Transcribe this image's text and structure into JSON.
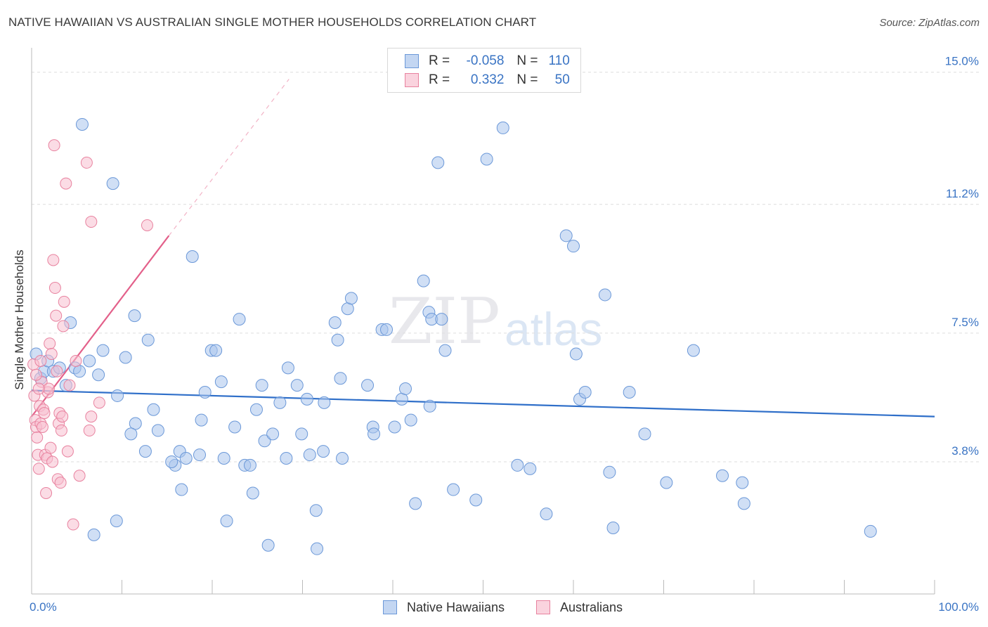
{
  "header": {
    "title": "NATIVE HAWAIIAN VS AUSTRALIAN SINGLE MOTHER HOUSEHOLDS CORRELATION CHART",
    "source": "Source: ZipAtlas.com"
  },
  "watermark": {
    "zip": "ZIP",
    "atlas": "atlas"
  },
  "legend": {
    "rows": [
      {
        "r_label": "R =",
        "r_value": "-0.058",
        "n_label": "N =",
        "n_value": "110",
        "color": "#a9c4ec",
        "border": "#6b98d8"
      },
      {
        "r_label": "R =",
        "r_value": "0.332",
        "n_label": "N =",
        "n_value": "50",
        "color": "#f7c0cf",
        "border": "#e8829f"
      }
    ]
  },
  "bottom_legend": {
    "items": [
      {
        "label": "Native Hawaiians",
        "color": "#a9c4ec",
        "border": "#6b98d8"
      },
      {
        "label": "Australians",
        "color": "#f7c0cf",
        "border": "#e8829f"
      }
    ]
  },
  "chart_data": {
    "type": "scatter",
    "title": "NATIVE HAWAIIAN VS AUSTRALIAN SINGLE MOTHER HOUSEHOLDS CORRELATION CHART",
    "xlabel": "",
    "ylabel": "Single Mother Households",
    "xlim": [
      0,
      100
    ],
    "ylim": [
      0,
      15.5
    ],
    "x_tick_labels": [
      "0.0%",
      "100.0%"
    ],
    "y_ticks": [
      3.8,
      7.5,
      11.2,
      15.0
    ],
    "y_tick_labels": [
      "3.8%",
      "7.5%",
      "11.2%",
      "15.0%"
    ],
    "grid": "dashed horizontal",
    "series": [
      {
        "name": "Native Hawaiians",
        "color": "#a9c4ec",
        "stroke": "#6b98d8",
        "trend": {
          "x": [
            0,
            100
          ],
          "y": [
            5.85,
            5.1
          ],
          "color": "#2f6fc9"
        },
        "points": [
          [
            5.6,
            13.5
          ],
          [
            9.0,
            11.8
          ],
          [
            0.5,
            6.9
          ],
          [
            1.0,
            6.2
          ],
          [
            1.4,
            6.4
          ],
          [
            1.8,
            6.7
          ],
          [
            2.4,
            6.4
          ],
          [
            3.1,
            6.5
          ],
          [
            3.8,
            6.0
          ],
          [
            4.8,
            6.5
          ],
          [
            5.3,
            6.4
          ],
          [
            6.4,
            6.7
          ],
          [
            7.4,
            6.3
          ],
          [
            7.9,
            7.0
          ],
          [
            9.5,
            5.7
          ],
          [
            10.4,
            6.8
          ],
          [
            11.5,
            4.9
          ],
          [
            11.0,
            4.6
          ],
          [
            11.4,
            8.0
          ],
          [
            12.9,
            7.3
          ],
          [
            13.5,
            5.3
          ],
          [
            14.0,
            4.7
          ],
          [
            12.6,
            4.1
          ],
          [
            9.4,
            2.1
          ],
          [
            6.9,
            1.7
          ],
          [
            17.8,
            9.7
          ],
          [
            15.9,
            3.7
          ],
          [
            16.4,
            4.1
          ],
          [
            15.5,
            3.8
          ],
          [
            16.6,
            3.0
          ],
          [
            17.1,
            3.9
          ],
          [
            18.6,
            4.0
          ],
          [
            19.2,
            5.8
          ],
          [
            19.9,
            7.0
          ],
          [
            20.4,
            7.0
          ],
          [
            21.0,
            6.1
          ],
          [
            21.3,
            3.9
          ],
          [
            21.6,
            2.1
          ],
          [
            22.5,
            4.8
          ],
          [
            23.0,
            7.9
          ],
          [
            23.6,
            3.7
          ],
          [
            24.2,
            3.7
          ],
          [
            24.5,
            2.9
          ],
          [
            24.9,
            5.3
          ],
          [
            25.5,
            6.0
          ],
          [
            25.8,
            4.4
          ],
          [
            26.7,
            4.6
          ],
          [
            27.5,
            5.5
          ],
          [
            28.2,
            3.9
          ],
          [
            28.4,
            6.5
          ],
          [
            29.4,
            6.0
          ],
          [
            29.9,
            4.6
          ],
          [
            30.5,
            5.6
          ],
          [
            30.8,
            4.0
          ],
          [
            31.5,
            2.4
          ],
          [
            31.6,
            1.3
          ],
          [
            32.3,
            4.1
          ],
          [
            32.4,
            5.5
          ],
          [
            33.6,
            7.8
          ],
          [
            33.9,
            7.3
          ],
          [
            34.2,
            6.2
          ],
          [
            34.4,
            3.9
          ],
          [
            35.0,
            8.2
          ],
          [
            35.4,
            8.5
          ],
          [
            37.2,
            6.0
          ],
          [
            37.8,
            4.8
          ],
          [
            37.9,
            4.6
          ],
          [
            38.8,
            7.6
          ],
          [
            39.3,
            7.6
          ],
          [
            40.2,
            4.8
          ],
          [
            41.0,
            5.6
          ],
          [
            41.4,
            5.9
          ],
          [
            42.0,
            5.0
          ],
          [
            42.5,
            2.6
          ],
          [
            43.4,
            9.0
          ],
          [
            44.0,
            8.1
          ],
          [
            44.3,
            7.9
          ],
          [
            45.0,
            12.4
          ],
          [
            45.4,
            7.9
          ],
          [
            45.8,
            7.0
          ],
          [
            46.7,
            3.0
          ],
          [
            49.2,
            2.7
          ],
          [
            50.4,
            12.5
          ],
          [
            52.2,
            13.4
          ],
          [
            53.8,
            3.7
          ],
          [
            55.2,
            3.6
          ],
          [
            57.0,
            2.3
          ],
          [
            59.2,
            10.3
          ],
          [
            60.0,
            10.0
          ],
          [
            60.3,
            6.9
          ],
          [
            60.7,
            5.6
          ],
          [
            61.3,
            5.8
          ],
          [
            63.5,
            8.6
          ],
          [
            64.0,
            3.5
          ],
          [
            64.4,
            1.9
          ],
          [
            66.2,
            5.8
          ],
          [
            67.9,
            4.6
          ],
          [
            70.3,
            3.2
          ],
          [
            73.3,
            7.0
          ],
          [
            76.5,
            3.4
          ],
          [
            78.7,
            3.2
          ],
          [
            78.9,
            2.6
          ],
          [
            92.9,
            1.8
          ],
          [
            4.3,
            7.8
          ],
          [
            18.8,
            5.0
          ],
          [
            26.2,
            1.4
          ],
          [
            44.1,
            5.4
          ]
        ]
      },
      {
        "name": "Australians",
        "color": "#f7c0cf",
        "stroke": "#e8829f",
        "trend": {
          "x": [
            0,
            15.2
          ],
          "y": [
            5.1,
            10.3
          ],
          "extended": {
            "x": [
              15.2,
              28.5
            ],
            "y": [
              10.3,
              14.8
            ]
          },
          "color": "#e3608a"
        },
        "points": [
          [
            0.2,
            6.6
          ],
          [
            0.3,
            5.7
          ],
          [
            0.4,
            5.0
          ],
          [
            0.5,
            4.8
          ],
          [
            0.6,
            4.5
          ],
          [
            0.7,
            4.0
          ],
          [
            0.8,
            3.6
          ],
          [
            0.9,
            5.4
          ],
          [
            1.0,
            4.9
          ],
          [
            1.1,
            6.1
          ],
          [
            1.2,
            4.8
          ],
          [
            1.3,
            5.3
          ],
          [
            1.4,
            5.2
          ],
          [
            1.5,
            4.0
          ],
          [
            1.6,
            2.9
          ],
          [
            1.7,
            3.9
          ],
          [
            1.8,
            5.8
          ],
          [
            1.9,
            5.9
          ],
          [
            2.0,
            7.2
          ],
          [
            2.1,
            4.2
          ],
          [
            2.2,
            6.9
          ],
          [
            2.3,
            3.8
          ],
          [
            2.4,
            9.6
          ],
          [
            2.5,
            12.9
          ],
          [
            2.6,
            8.8
          ],
          [
            2.7,
            8.0
          ],
          [
            2.8,
            6.4
          ],
          [
            2.9,
            3.3
          ],
          [
            3.0,
            4.9
          ],
          [
            3.1,
            5.2
          ],
          [
            3.2,
            3.2
          ],
          [
            3.3,
            4.7
          ],
          [
            3.4,
            5.1
          ],
          [
            3.5,
            7.7
          ],
          [
            3.6,
            8.4
          ],
          [
            3.8,
            11.8
          ],
          [
            4.0,
            4.1
          ],
          [
            4.2,
            6.0
          ],
          [
            4.6,
            2.0
          ],
          [
            4.9,
            6.7
          ],
          [
            5.3,
            3.4
          ],
          [
            6.1,
            12.4
          ],
          [
            6.4,
            4.7
          ],
          [
            6.6,
            5.1
          ],
          [
            6.6,
            10.7
          ],
          [
            7.5,
            5.5
          ],
          [
            12.8,
            10.6
          ],
          [
            0.5,
            6.3
          ],
          [
            1.0,
            6.7
          ],
          [
            0.8,
            5.9
          ]
        ]
      }
    ]
  }
}
